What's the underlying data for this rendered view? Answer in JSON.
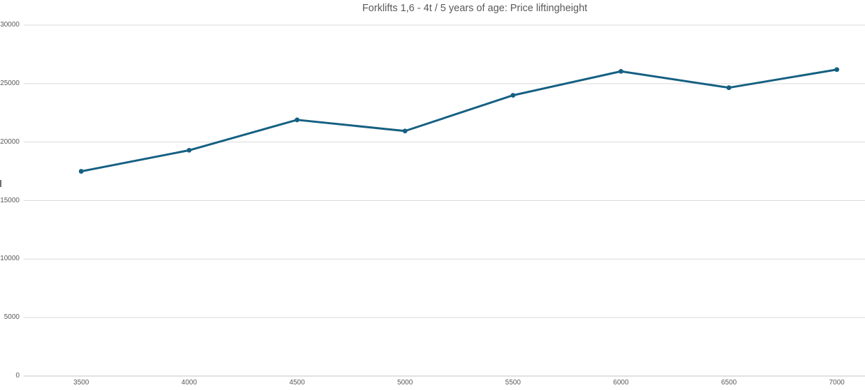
{
  "chart_data": {
    "type": "line",
    "title": "Forklifts 1,6 - 4t / 5 years of age: Price liftingheight",
    "categories": [
      "3500",
      "4000",
      "4500",
      "5000",
      "5500",
      "6000",
      "6500",
      "7000"
    ],
    "values": [
      17500,
      19300,
      21900,
      20950,
      24000,
      26050,
      24650,
      26200
    ],
    "xlabel": "",
    "ylabel": "",
    "ylim": [
      0,
      30000
    ],
    "yticks": [
      0,
      5000,
      10000,
      15000,
      20000,
      25000,
      30000
    ],
    "ytick_labels": [
      "0",
      "5000",
      "10000",
      "15000",
      "20000",
      "25000",
      "30000"
    ],
    "grid": "horizontal",
    "legend": "none",
    "marker": "circle",
    "colors": {
      "line": "#156082",
      "gridline": "#d9d9d9",
      "axis_line": "#c6c6c6",
      "text": "#595959",
      "background": "#ffffff"
    }
  }
}
